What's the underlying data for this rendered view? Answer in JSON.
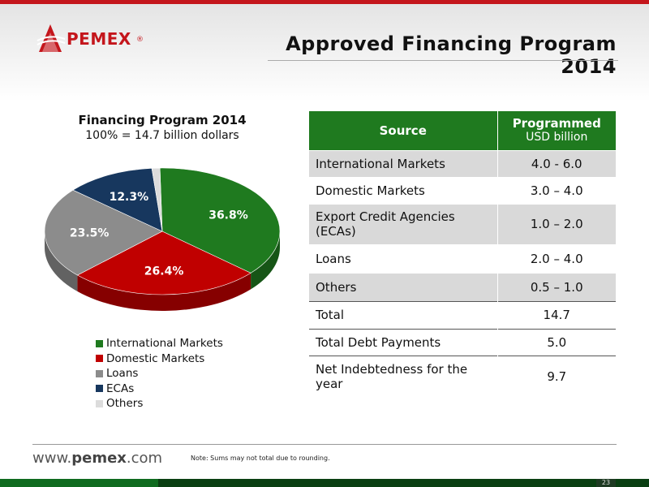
{
  "header": {
    "logo_text": "PEMEX",
    "logo_reg": "®",
    "title": "Approved Financing Program 2014"
  },
  "chart_data": {
    "type": "pie",
    "title": "Financing Program 2014",
    "subtitle": "100% = 14.7 billion dollars",
    "slices": [
      {
        "name": "International Markets",
        "value": 36.8,
        "label": "36.8%",
        "color": "#1f7a1f"
      },
      {
        "name": "Domestic Markets",
        "value": 26.4,
        "label": "26.4%",
        "color": "#c00000"
      },
      {
        "name": "Loans",
        "value": 23.5,
        "label": "23.5%",
        "color": "#8c8c8c"
      },
      {
        "name": "ECAs",
        "value": 12.3,
        "label": "12.3%",
        "color": "#17375e"
      },
      {
        "name": "Others",
        "value": 1.1,
        "label": "1.1%",
        "color": "#dcdcdc"
      }
    ],
    "legend_position": "bottom-left"
  },
  "table": {
    "headers": {
      "source": "Source",
      "programmed": "Programmed",
      "unit": "USD billion"
    },
    "rows": [
      {
        "source": "International Markets",
        "value": "4.0 - 6.0"
      },
      {
        "source": "Domestic Markets",
        "value": "3.0 – 4.0"
      },
      {
        "source": "Export Credit Agencies (ECAs)",
        "value": "1.0 – 2.0"
      },
      {
        "source": "Loans",
        "value": "2.0 – 4.0"
      },
      {
        "source": "Others",
        "value": "0.5 – 1.0"
      },
      {
        "source": "Total",
        "value": "14.7"
      },
      {
        "source": "Total Debt Payments",
        "value": "5.0"
      },
      {
        "source": "Net Indebtedness for the year",
        "value": "9.7"
      }
    ]
  },
  "footer": {
    "site_prefix": "www.",
    "site_brand": "pemex",
    "site_suffix": ".com",
    "note": "Note: Sums may not total due to rounding.",
    "page_number": "23"
  },
  "colors": {
    "brand_red": "#c4161c",
    "brand_green": "#1f7a1f"
  }
}
